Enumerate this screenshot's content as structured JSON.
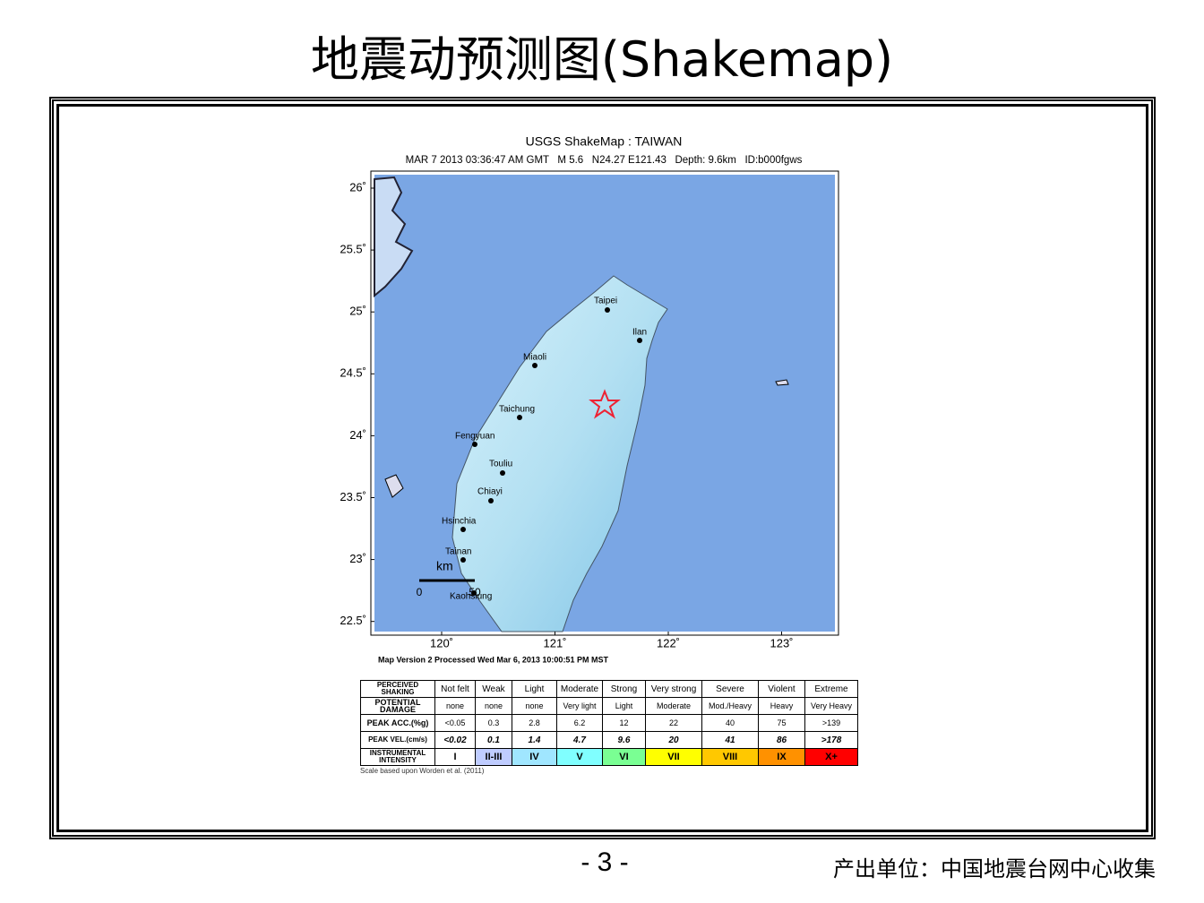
{
  "page": {
    "title": "地震动预测图(Shakemap)",
    "page_number": "- 3 -",
    "source": "产出单位：中国地震台网中心收集"
  },
  "map": {
    "title": "USGS ShakeMap : TAIWAN",
    "subtitle": "MAR 7 2013 03:36:47 AM GMT   M 5.6   N24.27 E121.43   Depth: 9.6km   ID:b000fgws",
    "lat_ticks": [
      "26˚",
      "25.5˚",
      "25˚",
      "24.5˚",
      "24˚",
      "23.5˚",
      "23˚",
      "22.5˚"
    ],
    "lon_ticks": [
      "120˚",
      "121˚",
      "122˚",
      "123˚"
    ],
    "cities": [
      "Taipei",
      "Ilan",
      "Miaoli",
      "Taichung",
      "Fengyuan",
      "Touliu",
      "Chiayi",
      "Hsinchia",
      "Tainan",
      "Kaohsiung"
    ],
    "scale_label": "km",
    "scale_ticks": [
      "0",
      "50"
    ],
    "version": "Map Version 2 Processed Wed Mar  6, 2013 10:00:51 PM MST"
  },
  "legend_table": {
    "rows": [
      [
        "PERCEIVED SHAKING",
        "Not felt",
        "Weak",
        "Light",
        "Moderate",
        "Strong",
        "Very strong",
        "Severe",
        "Violent",
        "Extreme"
      ],
      [
        "POTENTIAL DAMAGE",
        "none",
        "none",
        "none",
        "Very light",
        "Light",
        "Moderate",
        "Mod./Heavy",
        "Heavy",
        "Very Heavy"
      ],
      [
        "PEAK ACC.(%g)",
        "<0.05",
        "0.3",
        "2.8",
        "6.2",
        "12",
        "22",
        "40",
        "75",
        ">139"
      ],
      [
        "PEAK VEL.(cm/s)",
        "<0.02",
        "0.1",
        "1.4",
        "4.7",
        "9.6",
        "20",
        "41",
        "86",
        ">178"
      ],
      [
        "INSTRUMENTAL INTENSITY",
        "I",
        "II-III",
        "IV",
        "V",
        "VI",
        "VII",
        "VIII",
        "IX",
        "X+"
      ]
    ],
    "note": "Scale based upon Worden et al. (2011)"
  }
}
